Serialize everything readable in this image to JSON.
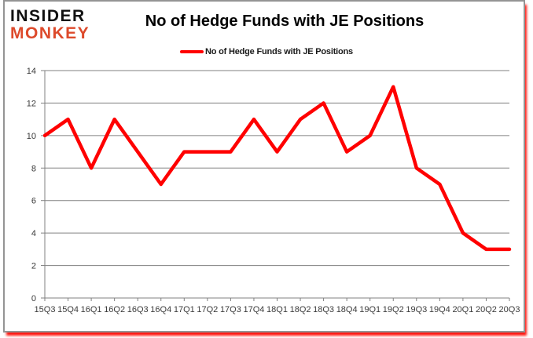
{
  "logo": {
    "line1": "INSIDER",
    "line2": "MONKEY"
  },
  "header": {
    "title": "No of Hedge Funds with JE Positions"
  },
  "legend": {
    "label": "No of Hedge Funds with JE Positions"
  },
  "colors": {
    "line": "#ff0000",
    "grid": "#808080",
    "axis": "#808080",
    "axis_text": "#3a3a3a",
    "logo_accent": "#dd4a2b",
    "frame_border": "#949494",
    "frame_shadow": "#ff0800"
  },
  "chart_data": {
    "type": "line",
    "title": "No of Hedge Funds with JE Positions",
    "categories": [
      "15Q3",
      "15Q4",
      "16Q1",
      "16Q2",
      "16Q3",
      "16Q4",
      "17Q1",
      "17Q2",
      "17Q3",
      "17Q4",
      "18Q1",
      "18Q2",
      "18Q3",
      "18Q4",
      "19Q1",
      "19Q2",
      "19Q3",
      "19Q4",
      "20Q1",
      "20Q2",
      "20Q3"
    ],
    "series": [
      {
        "name": "No of Hedge Funds with JE Positions",
        "values": [
          10,
          11,
          8,
          11,
          9,
          7,
          9,
          9,
          9,
          11,
          9,
          11,
          12,
          9,
          10,
          13,
          8,
          7,
          4,
          3,
          3
        ]
      }
    ],
    "xlabel": "",
    "ylabel": "",
    "ylim": [
      0,
      14
    ],
    "yticks": [
      0,
      2,
      4,
      6,
      8,
      10,
      12,
      14
    ],
    "grid": true,
    "legend_position": "top"
  }
}
